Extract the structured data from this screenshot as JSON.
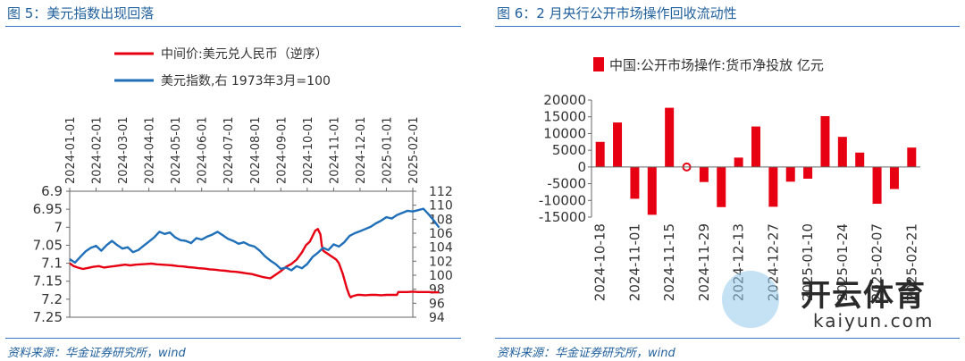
{
  "left_panel": {
    "title": "图 5：美元指数出现回落",
    "source": "资料来源：华金证券研究所，wind"
  },
  "right_panel": {
    "title": "图 6：2 月央行公开市场操作回收流动性",
    "source": "资料来源：华金证券研究所，wind"
  },
  "watermark": {
    "brand": "开云体育",
    "site": "kaiyun.com"
  },
  "colors": {
    "red": "#e60012",
    "blue": "#1f6fb9",
    "title": "#1f5f9c"
  },
  "chart_data": [
    {
      "type": "line",
      "x_tick_labels": [
        "2024-01-01",
        "2024-02-01",
        "2024-03-01",
        "2024-04-01",
        "2024-05-01",
        "2024-06-01",
        "2024-07-01",
        "2024-08-01",
        "2024-09-01",
        "2024-10-01",
        "2024-11-01",
        "2024-12-01",
        "2025-01-01",
        "2025-02-01"
      ],
      "y_left": {
        "ticks": [
          "6.9",
          "6.95",
          "7",
          "7.05",
          "7.1",
          "7.15",
          "7.2",
          "7.25"
        ],
        "range": [
          6.9,
          7.25
        ],
        "inverted": true
      },
      "y_right": {
        "ticks": [
          "112",
          "110",
          "108",
          "106",
          "104",
          "102",
          "100",
          "98",
          "96",
          "94"
        ],
        "range": [
          94,
          112
        ]
      },
      "series": [
        {
          "name": "中间价:美元兑人民币（逆序）",
          "axis": "left",
          "color": "#e60012",
          "x": [
            0,
            0.15,
            0.3,
            0.5,
            0.7,
            0.9,
            1.1,
            1.3,
            1.5,
            1.7,
            1.9,
            2.1,
            2.3,
            2.5,
            2.7,
            2.9,
            3.1,
            3.3,
            3.5,
            3.7,
            3.9,
            4.1,
            4.3,
            4.5,
            4.7,
            4.9,
            5.1,
            5.3,
            5.5,
            5.7,
            5.9,
            6.1,
            6.3,
            6.5,
            6.7,
            6.9,
            7.1,
            7.3,
            7.6,
            7.8,
            8.0,
            8.2,
            8.4,
            8.6,
            8.8,
            8.95,
            9.1,
            9.3,
            9.4,
            9.5,
            9.55,
            9.6,
            9.7,
            9.8,
            9.9,
            10.0,
            10.1,
            10.2,
            10.35,
            10.5,
            10.6,
            10.65,
            10.7,
            10.8,
            10.9,
            11.0,
            11.2,
            11.4,
            11.6,
            11.8,
            12.0,
            12.2,
            12.4,
            12.45,
            12.6,
            12.8,
            13.0,
            13.2,
            13.4,
            13.6,
            13.8,
            14.0
          ],
          "values": [
            7.1,
            7.108,
            7.112,
            7.116,
            7.113,
            7.11,
            7.108,
            7.112,
            7.11,
            7.108,
            7.106,
            7.104,
            7.106,
            7.104,
            7.103,
            7.102,
            7.101,
            7.103,
            7.104,
            7.105,
            7.106,
            7.108,
            7.109,
            7.111,
            7.112,
            7.114,
            7.115,
            7.117,
            7.118,
            7.12,
            7.121,
            7.123,
            7.124,
            7.126,
            7.128,
            7.13,
            7.134,
            7.138,
            7.142,
            7.132,
            7.122,
            7.11,
            7.102,
            7.09,
            7.07,
            7.05,
            7.04,
            7.01,
            7.005,
            7.02,
            7.05,
            7.065,
            7.07,
            7.075,
            7.08,
            7.085,
            7.09,
            7.1,
            7.13,
            7.17,
            7.19,
            7.195,
            7.192,
            7.19,
            7.188,
            7.188,
            7.189,
            7.188,
            7.188,
            7.189,
            7.188,
            7.188,
            7.188,
            7.18,
            7.18,
            7.18,
            7.179,
            7.18,
            7.18,
            7.18,
            7.181,
            7.181
          ]
        },
        {
          "name": "美元指数,右 1973年3月=100",
          "axis": "right",
          "color": "#1f6fb9",
          "x": [
            0,
            0.2,
            0.4,
            0.6,
            0.8,
            1.0,
            1.2,
            1.4,
            1.6,
            1.8,
            2.0,
            2.2,
            2.4,
            2.6,
            2.8,
            3.0,
            3.2,
            3.4,
            3.6,
            3.8,
            4.0,
            4.2,
            4.4,
            4.6,
            4.8,
            5.0,
            5.2,
            5.4,
            5.6,
            5.8,
            6.0,
            6.2,
            6.4,
            6.6,
            6.8,
            7.0,
            7.2,
            7.4,
            7.6,
            7.8,
            8.0,
            8.2,
            8.4,
            8.6,
            8.8,
            9.0,
            9.2,
            9.4,
            9.6,
            9.8,
            10.0,
            10.2,
            10.4,
            10.6,
            10.8,
            11.0,
            11.2,
            11.4,
            11.6,
            11.8,
            12.0,
            12.2,
            12.4,
            12.6,
            12.8,
            13.0,
            13.2,
            13.4,
            13.6,
            13.8,
            14.0
          ],
          "values": [
            102.3,
            101.8,
            102.6,
            103.4,
            103.9,
            104.2,
            103.5,
            104.3,
            104.9,
            104.3,
            103.8,
            104.0,
            103.3,
            103.6,
            104.2,
            104.8,
            105.4,
            106.2,
            105.9,
            106.1,
            105.4,
            105.0,
            104.9,
            104.6,
            105.3,
            105.1,
            105.5,
            105.8,
            106.2,
            105.7,
            105.2,
            104.9,
            104.5,
            104.7,
            104.3,
            104.1,
            103.5,
            102.7,
            102.1,
            101.6,
            100.9,
            101.1,
            100.7,
            101.3,
            101.0,
            101.6,
            102.6,
            103.2,
            103.9,
            103.6,
            104.4,
            104.1,
            104.7,
            105.6,
            106.0,
            106.3,
            106.6,
            106.9,
            107.4,
            107.8,
            108.3,
            108.1,
            108.6,
            108.9,
            109.2,
            109.1,
            109.3,
            109.5,
            108.7,
            107.8,
            106.8
          ]
        }
      ]
    },
    {
      "type": "bar",
      "x_tick_labels": [
        "2024-10-18",
        "2024-11-01",
        "2024-11-15",
        "2024-11-29",
        "2024-12-13",
        "2024-12-27",
        "2025-01-10",
        "2025-01-24",
        "2025-02-07",
        "2025-02-21"
      ],
      "y_ticks": [
        "20000",
        "15000",
        "10000",
        "5000",
        "0",
        "-5000",
        "-10000",
        "-15000"
      ],
      "ylim": [
        -15000,
        20000
      ],
      "series": [
        {
          "name": "中国:公开市场操作:货币净投放 亿元",
          "color": "#e60012",
          "values": [
            7500,
            13300,
            -9500,
            -14300,
            17700,
            0,
            -4500,
            -12000,
            2800,
            12100,
            -11900,
            -4400,
            -3500,
            15200,
            9000,
            4300,
            -11000,
            -6600,
            5800
          ]
        }
      ]
    }
  ]
}
